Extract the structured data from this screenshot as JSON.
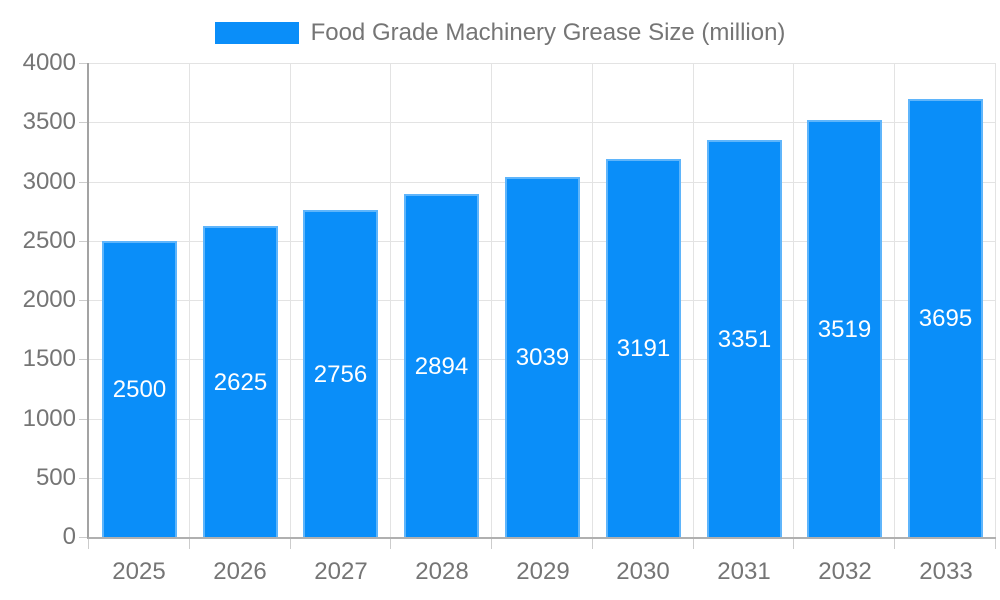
{
  "legend": {
    "label": "Food Grade Machinery Grease Size (million)",
    "swatch_color": "#0a8ef9"
  },
  "chart_data": {
    "type": "bar",
    "title": "Food Grade Machinery Grease Size (million)",
    "categories": [
      "2025",
      "2026",
      "2027",
      "2028",
      "2029",
      "2030",
      "2031",
      "2032",
      "2033"
    ],
    "values": [
      2500,
      2625,
      2756,
      2894,
      3039,
      3191,
      3351,
      3519,
      3695
    ],
    "xlabel": "",
    "ylabel": "",
    "ylim": [
      0,
      4000
    ],
    "ytick_step": 500,
    "ytick_labels": [
      "0",
      "500",
      "1000",
      "1500",
      "2000",
      "2500",
      "3000",
      "3500",
      "4000"
    ],
    "grid": true,
    "legend_position": "top-center",
    "bar_color": "#0a8ef9",
    "bar_label_color": "#ffffff"
  },
  "colors": {
    "background": "#ffffff",
    "grid": "#e3e3e3",
    "axis": "#a3a3a3",
    "tick": "#cccccc",
    "axis_text": "#757575"
  }
}
